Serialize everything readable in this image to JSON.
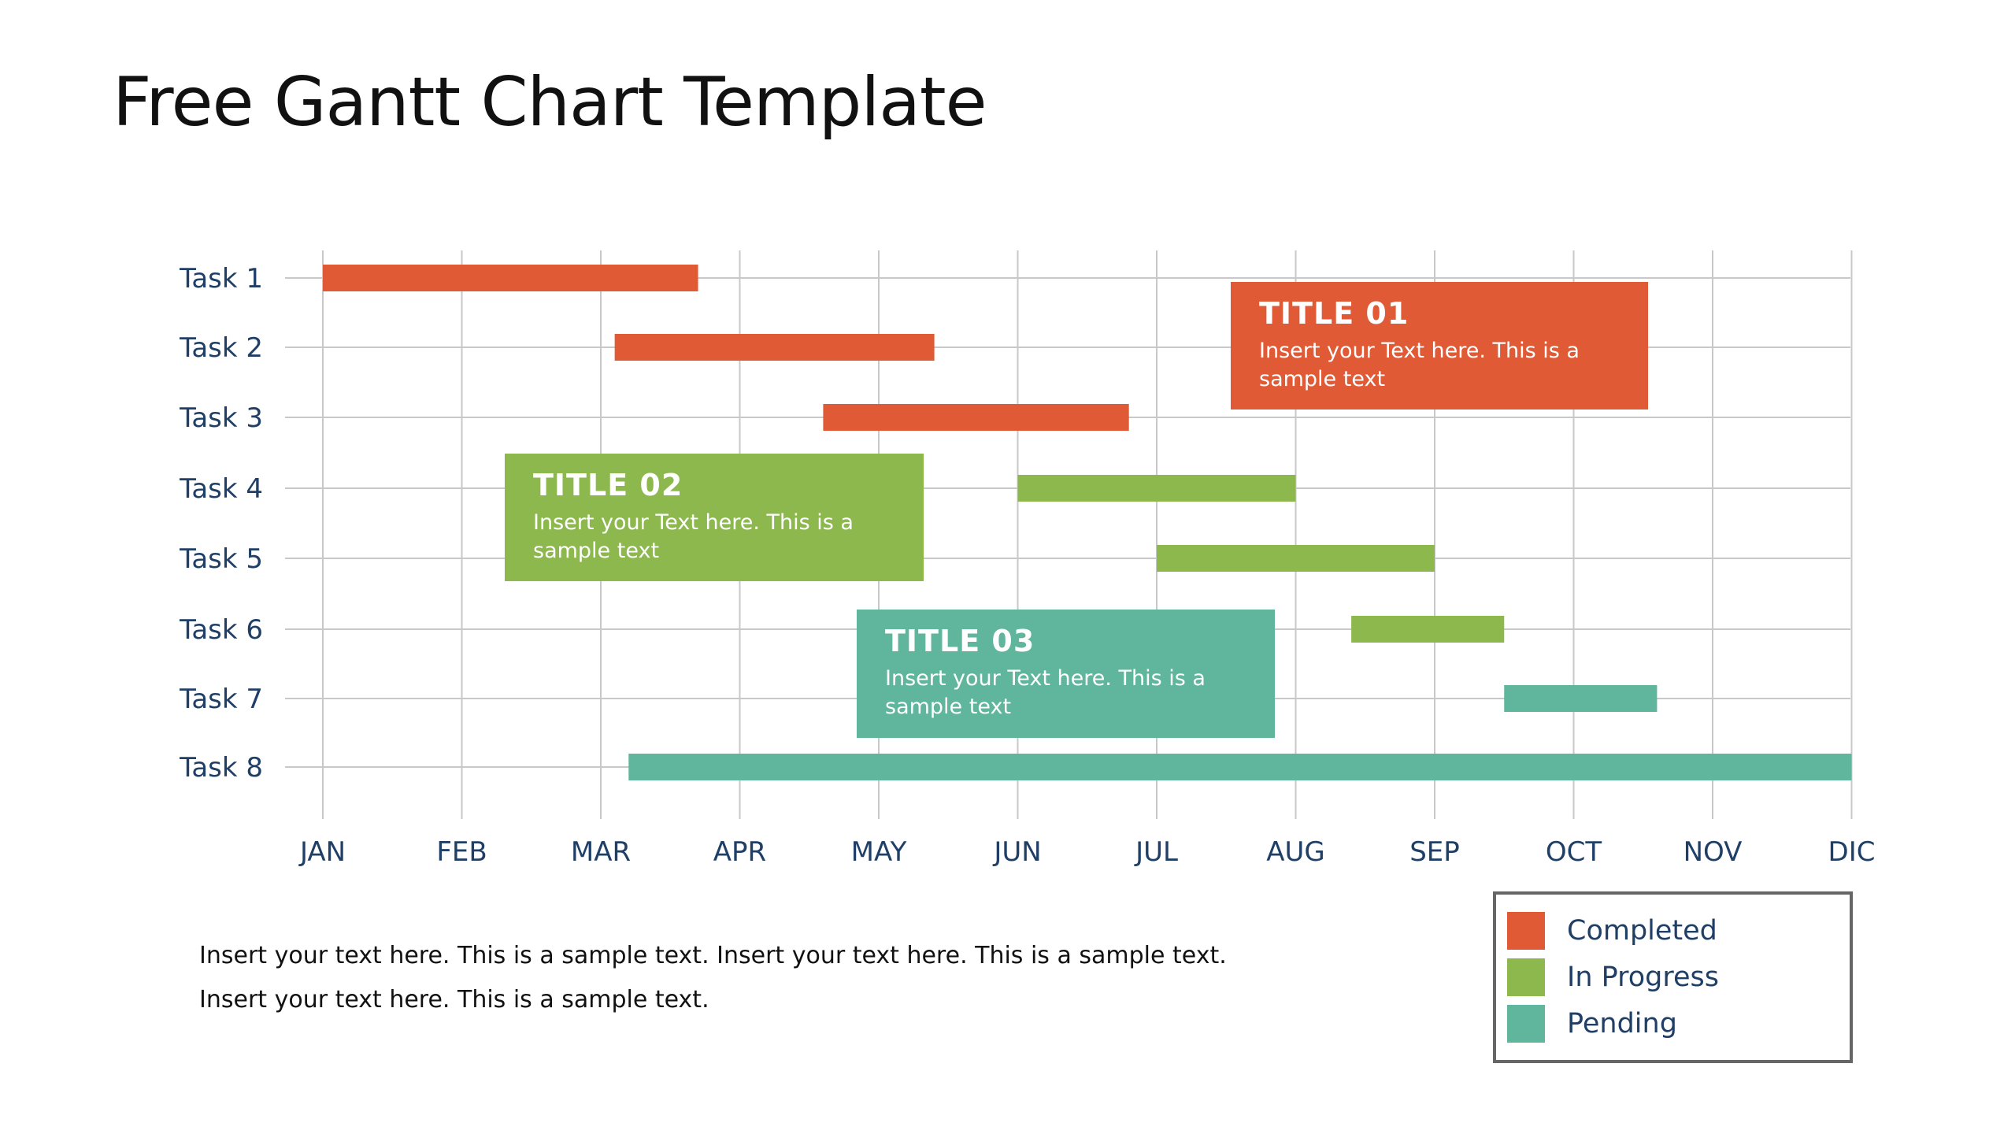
{
  "title": "Free Gantt Chart Template",
  "chart_data": {
    "type": "gantt",
    "categories": [
      "Task 1",
      "Task 2",
      "Task 3",
      "Task 4",
      "Task 5",
      "Task 6",
      "Task 7",
      "Task 8"
    ],
    "months": [
      "JAN",
      "FEB",
      "MAR",
      "APR",
      "MAY",
      "JUN",
      "JUL",
      "AUG",
      "SEP",
      "OCT",
      "NOV",
      "DIC"
    ],
    "x_unit": "months from JAN",
    "tasks": [
      {
        "label": "Task 1",
        "start": 0,
        "end": 2.7,
        "status": "Completed"
      },
      {
        "label": "Task 2",
        "start": 2.1,
        "end": 4.4,
        "status": "Completed"
      },
      {
        "label": "Task 3",
        "start": 3.6,
        "end": 5.8,
        "status": "Completed"
      },
      {
        "label": "Task 4",
        "start": 5.0,
        "end": 7.0,
        "status": "In Progress"
      },
      {
        "label": "Task 5",
        "start": 6.0,
        "end": 8.0,
        "status": "In Progress"
      },
      {
        "label": "Task 6",
        "start": 7.4,
        "end": 8.5,
        "status": "In Progress"
      },
      {
        "label": "Task 7",
        "start": 8.5,
        "end": 9.6,
        "status": "Pending"
      },
      {
        "label": "Task 8",
        "start": 2.2,
        "end": 11.0,
        "status": "Pending"
      }
    ],
    "grid": true,
    "legend": {
      "placement": "bottom-right",
      "items": [
        {
          "label": "Completed",
          "color": "#E05A35"
        },
        {
          "label": "In Progress",
          "color": "#8DB84E"
        },
        {
          "label": "Pending",
          "color": "#5FB69C"
        }
      ]
    }
  },
  "callouts": [
    {
      "title": "TITLE 01",
      "body": "Insert your Text here. This is a sample text",
      "color": "#E05A35"
    },
    {
      "title": "TITLE 02",
      "body": "Insert your Text here. This is a sample text",
      "color": "#8DB84E"
    },
    {
      "title": "TITLE 03",
      "body": "Insert your Text here. This is a sample text",
      "color": "#5FB69C"
    }
  ],
  "notes": [
    "Insert your text here. This is a sample text. Insert your text here. This is a sample text.",
    "Insert your text here. This is a sample text."
  ],
  "colors": {
    "text": "#1F3F66",
    "grid": "#C8C8C8"
  }
}
